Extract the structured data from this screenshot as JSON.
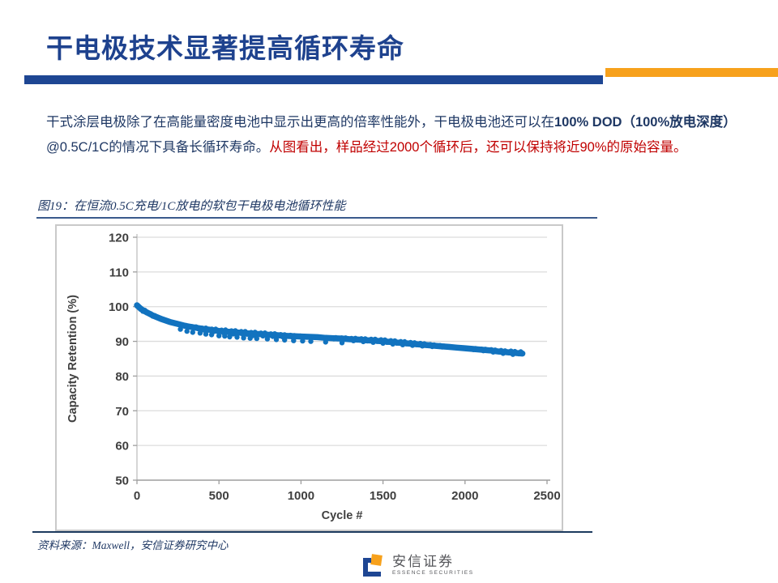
{
  "slide": {
    "title": "干电极技术显著提高循环寿命",
    "body": {
      "seg1": "干式涂层电极除了在高能量密度电池中显示出更高的倍率性能外，干电极电池还可以在",
      "seg2_bold": "100% DOD（100%放电深度）",
      "seg3": "@0.5C/1C的情况下具备长循环寿命。",
      "seg4_red": "从图看出，样品经过2000个循环后，还可以保持将近90%的原始容量。"
    },
    "figure_caption": "图19：在恒流0.5C充电/1C放电的软包干电极电池循环性能",
    "source_note": "资料来源：Maxwell，安信证券研究中心",
    "logo": {
      "name_cn": "安信证券",
      "name_en": "ESSENCE SECURITIES"
    },
    "colors": {
      "title_blue": "#1E428E",
      "bar_blue": "#1E4693",
      "accent_orange": "#F7A11C",
      "body_navy": "#1F3864",
      "highlight_red": "#C00000",
      "chart_point_blue": "#1273BF"
    }
  },
  "chart_data": {
    "type": "scatter",
    "title": "",
    "xlabel": "Cycle #",
    "ylabel": "Capacity Retention (%)",
    "xlim": [
      0,
      2500
    ],
    "ylim": [
      50,
      120
    ],
    "x_ticks": [
      0,
      500,
      1000,
      1500,
      2000,
      2500
    ],
    "y_ticks": [
      50,
      60,
      70,
      80,
      90,
      100,
      110,
      120
    ],
    "grid": true,
    "legend": "none",
    "series": [
      {
        "name": "capacity_retention_trend",
        "color": "#1273BF",
        "x": [
          0,
          25,
          50,
          75,
          100,
          150,
          200,
          250,
          300,
          350,
          400,
          450,
          500,
          550,
          600,
          650,
          700,
          750,
          800,
          850,
          900,
          950,
          1000,
          1050,
          1100,
          1150,
          1200,
          1250,
          1300,
          1350,
          1400,
          1450,
          1500,
          1550,
          1600,
          1650,
          1700,
          1750,
          1800,
          1850,
          1900,
          1950,
          2000,
          2050,
          2100,
          2150,
          2200,
          2250,
          2300,
          2350
        ],
        "y": [
          100.4,
          99.3,
          98.6,
          98.0,
          97.4,
          96.4,
          95.6,
          95.0,
          94.4,
          94.0,
          93.6,
          93.3,
          93.0,
          92.8,
          92.6,
          92.4,
          92.2,
          92.1,
          91.9,
          91.8,
          91.6,
          91.5,
          91.4,
          91.3,
          91.2,
          91.0,
          90.9,
          90.8,
          90.6,
          90.5,
          90.3,
          90.2,
          90.0,
          89.8,
          89.6,
          89.4,
          89.2,
          89.0,
          88.8,
          88.6,
          88.4,
          88.2,
          88.0,
          87.8,
          87.6,
          87.4,
          87.1,
          86.9,
          86.7,
          86.5
        ]
      }
    ],
    "outliers": [
      [
        265,
        93.5
      ],
      [
        305,
        92.9
      ],
      [
        340,
        92.6
      ],
      [
        385,
        92.4
      ],
      [
        420,
        92.1
      ],
      [
        455,
        91.9
      ],
      [
        500,
        91.6
      ],
      [
        535,
        91.5
      ],
      [
        565,
        91.3
      ],
      [
        610,
        91.2
      ],
      [
        650,
        91.0
      ],
      [
        690,
        90.9
      ],
      [
        730,
        90.8
      ],
      [
        795,
        90.7
      ],
      [
        850,
        90.5
      ],
      [
        900,
        90.4
      ],
      [
        955,
        90.2
      ],
      [
        1010,
        90.1
      ],
      [
        1060,
        90.0
      ],
      [
        1150,
        89.8
      ],
      [
        1250,
        89.6
      ]
    ]
  }
}
